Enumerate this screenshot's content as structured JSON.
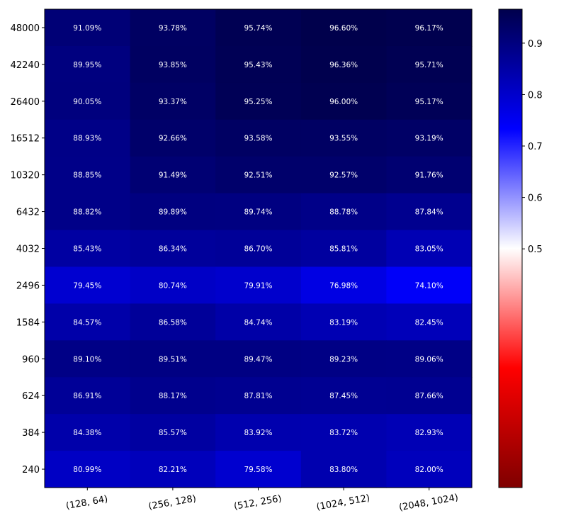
{
  "chart_data": {
    "type": "heatmap",
    "title": "",
    "xlabel": "",
    "ylabel": "",
    "x_categories": [
      "(128, 64)",
      "(256, 128)",
      "(512, 256)",
      "(1024, 512)",
      "(2048, 1024)"
    ],
    "y_categories": [
      "48000",
      "42240",
      "26400",
      "16512",
      "10320",
      "6432",
      "4032",
      "2496",
      "1584",
      "960",
      "624",
      "384",
      "240"
    ],
    "values": [
      [
        0.9109,
        0.9378,
        0.9574,
        0.966,
        0.9617
      ],
      [
        0.8995,
        0.9385,
        0.9543,
        0.9636,
        0.9571
      ],
      [
        0.9005,
        0.9337,
        0.9525,
        0.96,
        0.9517
      ],
      [
        0.8893,
        0.9266,
        0.9358,
        0.9355,
        0.9319
      ],
      [
        0.8885,
        0.9149,
        0.9251,
        0.9257,
        0.9176
      ],
      [
        0.8882,
        0.8989,
        0.8974,
        0.8878,
        0.8784
      ],
      [
        0.8543,
        0.8634,
        0.867,
        0.8581,
        0.8305
      ],
      [
        0.7945,
        0.8074,
        0.7991,
        0.7698,
        0.741
      ],
      [
        0.8457,
        0.8658,
        0.8474,
        0.8319,
        0.8245
      ],
      [
        0.891,
        0.8951,
        0.8947,
        0.8923,
        0.8906
      ],
      [
        0.8691,
        0.8817,
        0.8781,
        0.8745,
        0.8766
      ],
      [
        0.8438,
        0.8557,
        0.8392,
        0.8372,
        0.8293
      ],
      [
        0.8099,
        0.8221,
        0.7958,
        0.838,
        0.82
      ]
    ],
    "cell_labels": [
      [
        "91.09%",
        "93.78%",
        "95.74%",
        "96.60%",
        "96.17%"
      ],
      [
        "89.95%",
        "93.85%",
        "95.43%",
        "96.36%",
        "95.71%"
      ],
      [
        "90.05%",
        "93.37%",
        "95.25%",
        "96.00%",
        "95.17%"
      ],
      [
        "88.93%",
        "92.66%",
        "93.58%",
        "93.55%",
        "93.19%"
      ],
      [
        "88.85%",
        "91.49%",
        "92.51%",
        "92.57%",
        "91.76%"
      ],
      [
        "88.82%",
        "89.89%",
        "89.74%",
        "88.78%",
        "87.84%"
      ],
      [
        "85.43%",
        "86.34%",
        "86.70%",
        "85.81%",
        "83.05%"
      ],
      [
        "79.45%",
        "80.74%",
        "79.91%",
        "76.98%",
        "74.10%"
      ],
      [
        "84.57%",
        "86.58%",
        "84.74%",
        "83.19%",
        "82.45%"
      ],
      [
        "89.10%",
        "89.51%",
        "89.47%",
        "89.23%",
        "89.06%"
      ],
      [
        "86.91%",
        "88.17%",
        "87.81%",
        "87.45%",
        "87.66%"
      ],
      [
        "84.38%",
        "85.57%",
        "83.92%",
        "83.72%",
        "82.93%"
      ],
      [
        "80.99%",
        "82.21%",
        "79.58%",
        "83.80%",
        "82.00%"
      ]
    ],
    "colorbar": {
      "colormap": "seismic_r",
      "vmin": 0.0358,
      "vmax": 0.966,
      "center": 0.5,
      "ticks": [
        "0.5",
        "0.6",
        "0.7",
        "0.8",
        "0.9"
      ],
      "tick_values": [
        0.5,
        0.6,
        0.7,
        0.8,
        0.9
      ],
      "colors": {
        "low": "#7f0000",
        "mid_low": "#ff0000",
        "center": "#ffffff",
        "mid_high": "#0000ff",
        "high": "#00004c"
      }
    },
    "grid": false,
    "x_tick_rotation": "slight"
  }
}
